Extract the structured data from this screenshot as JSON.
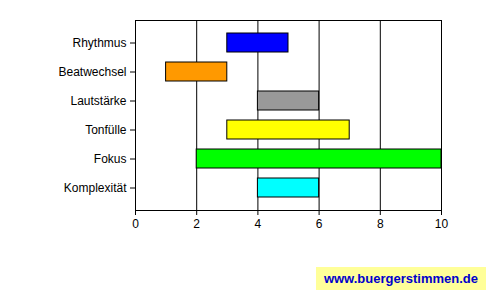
{
  "chart_data": {
    "type": "bar",
    "orientation": "horizontal",
    "categories": [
      "Rhythmus",
      "Beatwechsel",
      "Lautstärke",
      "Tonfülle",
      "Fokus",
      "Komplexität"
    ],
    "values": [
      [
        3,
        5
      ],
      [
        1,
        3
      ],
      [
        4,
        6
      ],
      [
        3,
        7
      ],
      [
        2,
        10
      ],
      [
        4,
        6
      ]
    ],
    "colors": [
      "#0000ff",
      "#ff9900",
      "#999999",
      "#ffff00",
      "#00ff00",
      "#00ffff"
    ],
    "xlim": [
      0,
      10
    ],
    "xticks": [
      0,
      2,
      4,
      6,
      8,
      10
    ],
    "grid": true,
    "annotation": "www.buergerstimmen.de"
  }
}
